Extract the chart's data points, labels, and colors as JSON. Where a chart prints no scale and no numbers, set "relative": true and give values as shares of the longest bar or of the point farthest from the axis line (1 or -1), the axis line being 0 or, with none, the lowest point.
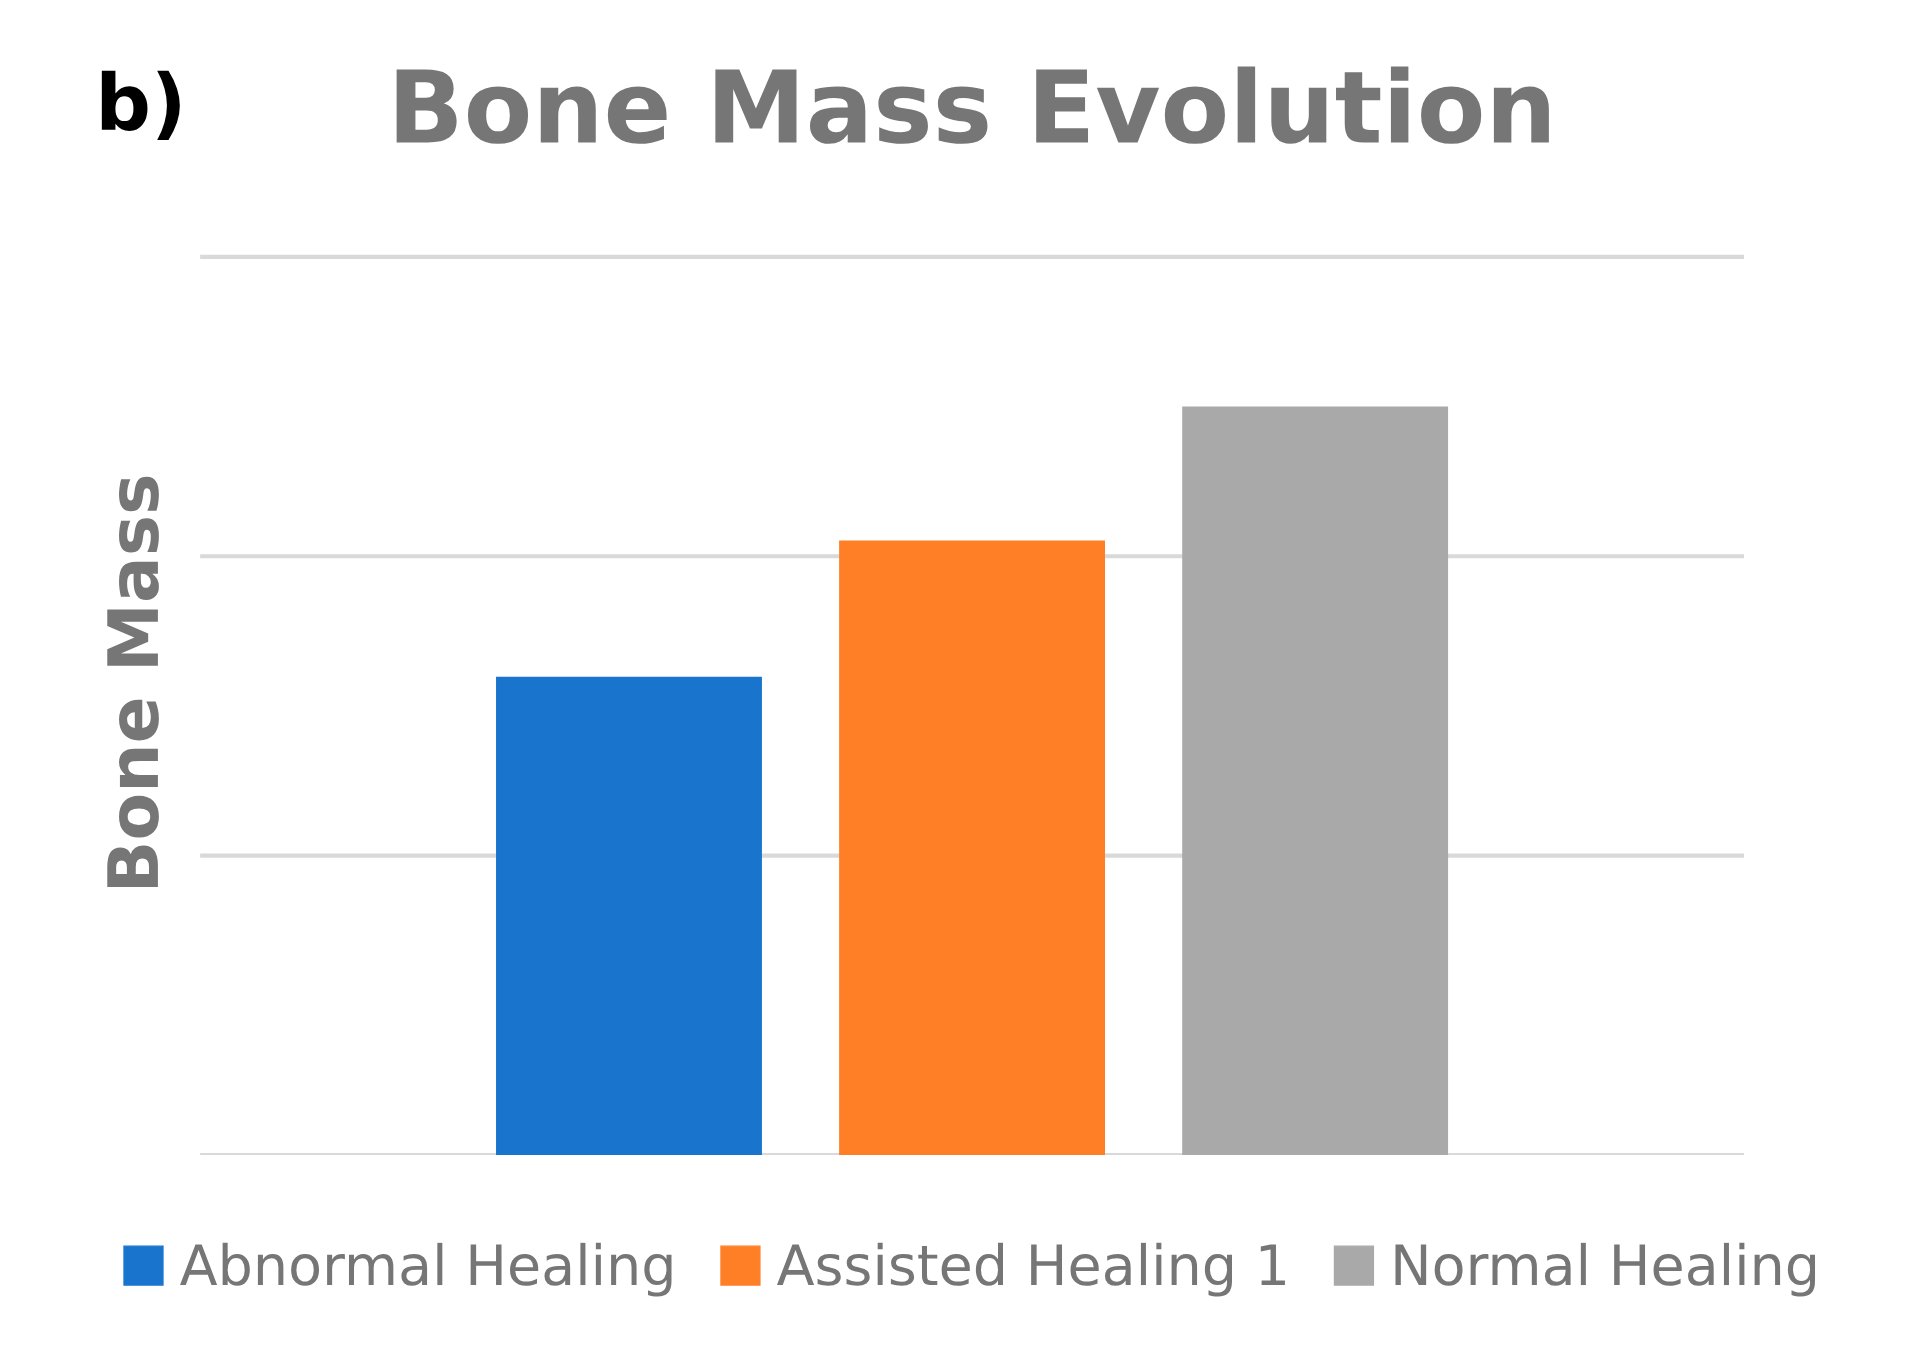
{
  "chart_data": {
    "type": "bar",
    "title": "Bone Mass Evolution",
    "ylabel": "Bone Mass",
    "annotations": [
      "b)"
    ],
    "categories": [
      null
    ],
    "relative": true,
    "legend": "bottom",
    "ref_lines": [
      {
        "axis": "y",
        "value": 0.4,
        "color": "#d9d9d9"
      },
      {
        "axis": "y",
        "value": 0.8,
        "color": "#d9d9d9"
      },
      {
        "axis": "y",
        "value": 1.2,
        "color": "#d9d9d9"
      }
    ],
    "series": [
      {
        "name": "Abnormal Healing",
        "color": "#1874cd",
        "values": [
          0.639
        ]
      },
      {
        "name": "Assisted Healing 1",
        "color": "#ff7f27",
        "values": [
          0.821
        ]
      },
      {
        "name": "Normal Healing",
        "color": "#a9a9a9",
        "values": [
          1
        ]
      }
    ]
  }
}
